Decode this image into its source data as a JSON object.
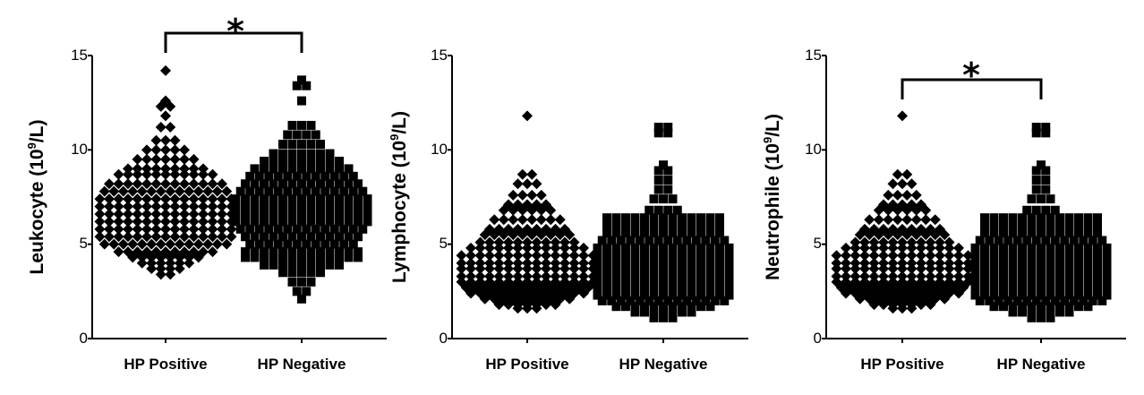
{
  "chart_data": [
    {
      "type": "scatter",
      "subtype": "dot-plot",
      "ylabel_text": "Leukocyte (10",
      "ylabel_sup": "9",
      "ylabel_unit": "/L)",
      "categories": [
        "HP Positive",
        "HP Negative"
      ],
      "y_ticks": [
        "0",
        "5",
        "10",
        "15"
      ],
      "ylim": [
        0,
        15
      ],
      "grid": false,
      "series": [
        {
          "category": "HP Positive",
          "marker": "diamond",
          "distribution": [
            [
              14.2,
              1
            ],
            [
              12.6,
              1
            ],
            [
              12.3,
              2
            ],
            [
              11.8,
              1
            ],
            [
              11.2,
              2
            ],
            [
              10.5,
              3
            ],
            [
              10.0,
              5
            ],
            [
              9.5,
              7
            ],
            [
              9.0,
              9
            ],
            [
              8.7,
              11
            ],
            [
              8.2,
              13
            ],
            [
              7.8,
              14
            ],
            [
              7.4,
              15
            ],
            [
              7.0,
              15
            ],
            [
              6.6,
              15
            ],
            [
              6.2,
              15
            ],
            [
              5.8,
              15
            ],
            [
              5.4,
              15
            ],
            [
              5.0,
              14
            ],
            [
              4.6,
              11
            ],
            [
              4.3,
              8
            ],
            [
              4.0,
              6
            ],
            [
              3.7,
              4
            ],
            [
              3.4,
              2
            ]
          ]
        },
        {
          "category": "HP Negative",
          "marker": "square",
          "distribution": [
            [
              13.7,
              1
            ],
            [
              13.4,
              2
            ],
            [
              12.6,
              1
            ],
            [
              11.3,
              3
            ],
            [
              10.8,
              4
            ],
            [
              10.3,
              5
            ],
            [
              9.8,
              7
            ],
            [
              9.4,
              9
            ],
            [
              9.0,
              11
            ],
            [
              8.6,
              12
            ],
            [
              8.2,
              13
            ],
            [
              7.8,
              14
            ],
            [
              7.4,
              15
            ],
            [
              7.0,
              15
            ],
            [
              6.6,
              15
            ],
            [
              6.2,
              15
            ],
            [
              5.8,
              14
            ],
            [
              5.4,
              13
            ],
            [
              5.0,
              12
            ],
            [
              4.6,
              13
            ],
            [
              4.3,
              13
            ],
            [
              3.9,
              9
            ],
            [
              3.5,
              5
            ],
            [
              3.0,
              3
            ],
            [
              2.5,
              2
            ],
            [
              2.1,
              1
            ]
          ]
        }
      ],
      "significance": {
        "label": "*",
        "between": [
          "HP Positive",
          "HP Negative"
        ]
      }
    },
    {
      "type": "scatter",
      "subtype": "dot-plot",
      "ylabel_text": "Lymphocyte (10",
      "ylabel_sup": "9",
      "ylabel_unit": "/L)",
      "categories": [
        "HP Positive",
        "HP Negative"
      ],
      "y_ticks": [
        "0",
        "5",
        "10",
        "15"
      ],
      "ylim": [
        0,
        15
      ],
      "grid": false,
      "series": [
        {
          "category": "HP Positive",
          "marker": "diamond",
          "distribution": [
            [
              11.8,
              1
            ],
            [
              8.7,
              2
            ],
            [
              8.2,
              3
            ],
            [
              7.6,
              4
            ],
            [
              7.1,
              5
            ],
            [
              6.8,
              6
            ],
            [
              6.3,
              8
            ],
            [
              5.8,
              9
            ],
            [
              5.5,
              10
            ],
            [
              5.1,
              11
            ],
            [
              4.8,
              13
            ],
            [
              4.4,
              15
            ],
            [
              4.0,
              15
            ],
            [
              3.7,
              15
            ],
            [
              3.3,
              15
            ],
            [
              3.0,
              15
            ],
            [
              2.7,
              14
            ],
            [
              2.4,
              13
            ],
            [
              2.1,
              10
            ],
            [
              1.8,
              7
            ],
            [
              1.6,
              3
            ]
          ]
        },
        {
          "category": "HP Negative",
          "marker": "square",
          "distribution": [
            [
              11.2,
              2
            ],
            [
              10.9,
              2
            ],
            [
              9.2,
              1
            ],
            [
              8.9,
              2
            ],
            [
              8.4,
              2
            ],
            [
              7.9,
              2
            ],
            [
              7.4,
              3
            ],
            [
              6.8,
              4
            ],
            [
              6.4,
              13
            ],
            [
              6.0,
              13
            ],
            [
              5.6,
              13
            ],
            [
              5.2,
              14
            ],
            [
              4.8,
              15
            ],
            [
              4.4,
              15
            ],
            [
              4.0,
              15
            ],
            [
              3.7,
              15
            ],
            [
              3.3,
              15
            ],
            [
              3.0,
              15
            ],
            [
              2.6,
              15
            ],
            [
              2.3,
              15
            ],
            [
              2.0,
              14
            ],
            [
              1.7,
              11
            ],
            [
              1.4,
              7
            ],
            [
              1.1,
              3
            ]
          ]
        }
      ]
    },
    {
      "type": "scatter",
      "subtype": "dot-plot",
      "ylabel_text": "Neutrophile (10",
      "ylabel_sup": "9",
      "ylabel_unit": "/L)",
      "categories": [
        "HP Positive",
        "HP Negative"
      ],
      "y_ticks": [
        "0",
        "5",
        "10",
        "15"
      ],
      "ylim": [
        0,
        15
      ],
      "grid": false,
      "series": [
        {
          "category": "HP Positive",
          "marker": "diamond",
          "distribution": [
            [
              11.8,
              1
            ],
            [
              8.7,
              2
            ],
            [
              8.2,
              3
            ],
            [
              7.6,
              4
            ],
            [
              7.1,
              5
            ],
            [
              6.8,
              6
            ],
            [
              6.3,
              8
            ],
            [
              5.8,
              9
            ],
            [
              5.5,
              10
            ],
            [
              5.1,
              11
            ],
            [
              4.8,
              13
            ],
            [
              4.4,
              15
            ],
            [
              4.0,
              15
            ],
            [
              3.7,
              15
            ],
            [
              3.3,
              15
            ],
            [
              3.0,
              15
            ],
            [
              2.7,
              14
            ],
            [
              2.4,
              13
            ],
            [
              2.1,
              10
            ],
            [
              1.8,
              7
            ],
            [
              1.6,
              3
            ]
          ]
        },
        {
          "category": "HP Negative",
          "marker": "square",
          "distribution": [
            [
              11.2,
              2
            ],
            [
              10.9,
              2
            ],
            [
              9.2,
              1
            ],
            [
              8.9,
              2
            ],
            [
              8.4,
              2
            ],
            [
              7.9,
              2
            ],
            [
              7.4,
              3
            ],
            [
              6.8,
              4
            ],
            [
              6.4,
              13
            ],
            [
              6.0,
              13
            ],
            [
              5.6,
              13
            ],
            [
              5.2,
              14
            ],
            [
              4.8,
              15
            ],
            [
              4.4,
              15
            ],
            [
              4.0,
              15
            ],
            [
              3.7,
              15
            ],
            [
              3.3,
              15
            ],
            [
              3.0,
              15
            ],
            [
              2.6,
              15
            ],
            [
              2.3,
              15
            ],
            [
              2.0,
              14
            ],
            [
              1.7,
              11
            ],
            [
              1.4,
              7
            ],
            [
              1.1,
              3
            ]
          ]
        }
      ],
      "significance": {
        "label": "*",
        "between": [
          "HP Positive",
          "HP Negative"
        ]
      }
    }
  ]
}
